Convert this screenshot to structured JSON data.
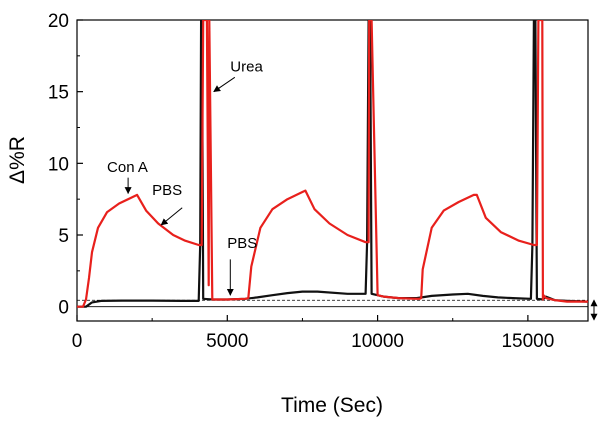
{
  "chart_data": {
    "type": "line",
    "xlabel": "Time (Sec)",
    "ylabel": "Δ%R",
    "xlim": [
      0,
      17000
    ],
    "ylim": [
      -1,
      20
    ],
    "xticks": [
      0,
      5000,
      10000,
      15000
    ],
    "yticks": [
      0,
      5,
      10,
      15,
      20
    ],
    "xtick_labels": [
      "0",
      "5000",
      "10000",
      "15000"
    ],
    "ytick_labels": [
      "0",
      "5",
      "10",
      "15",
      "20"
    ],
    "baseline_y": 0.45,
    "zero_y": 0,
    "grid": false,
    "series": [
      {
        "color": "#e8201c",
        "x": [
          0,
          200,
          300,
          400,
          500,
          700,
          1000,
          1400,
          2000,
          2300,
          2700,
          3200,
          3600,
          4050,
          4150,
          4200,
          4320,
          4380,
          4400,
          4500,
          5000,
          5600,
          5700,
          5800,
          6100,
          6500,
          7000,
          7500,
          7600,
          7900,
          8400,
          9000,
          9600,
          9700,
          9720,
          9800,
          10000,
          10200,
          10700,
          11300,
          11400,
          11450,
          11500,
          11800,
          12200,
          12700,
          13200,
          13300,
          13600,
          14100,
          14700,
          15200,
          15300,
          15350,
          15480,
          15500,
          15520,
          15600,
          15900,
          16300,
          17000
        ],
        "y": [
          0,
          0,
          0.5,
          2,
          3.8,
          5.5,
          6.6,
          7.2,
          7.8,
          6.7,
          5.8,
          5.0,
          4.6,
          4.3,
          4.3,
          20,
          20,
          1.5,
          20,
          0.5,
          0.5,
          0.55,
          0.6,
          2.8,
          5.5,
          6.8,
          7.5,
          8.0,
          8.1,
          6.8,
          5.8,
          5.0,
          4.5,
          4.5,
          20,
          20,
          0.8,
          0.7,
          0.6,
          0.55,
          0.55,
          0.6,
          2.6,
          5.5,
          6.7,
          7.3,
          7.8,
          7.8,
          6.2,
          5.2,
          4.6,
          4.3,
          4.3,
          20,
          20,
          0.5,
          0.8,
          0.6,
          0.45,
          0.35,
          0.35
        ]
      },
      {
        "color": "#111111",
        "x": [
          0,
          300,
          500,
          800,
          1500,
          2500,
          3500,
          4050,
          4100,
          4130,
          4160,
          4200,
          4500,
          5000,
          5600,
          6000,
          6500,
          7000,
          7500,
          8000,
          9000,
          9600,
          9650,
          9700,
          9750,
          9800,
          10000,
          10200,
          10700,
          11300,
          11800,
          12500,
          13000,
          13500,
          14000,
          14500,
          15100,
          15150,
          15200,
          15250,
          15300,
          15500,
          15600,
          15900,
          16300,
          17000
        ],
        "y": [
          0,
          0,
          0.3,
          0.4,
          0.42,
          0.42,
          0.4,
          0.4,
          4.3,
          20,
          20,
          0.55,
          0.5,
          0.5,
          0.55,
          0.65,
          0.8,
          0.95,
          1.05,
          1.05,
          0.9,
          0.9,
          4.5,
          20,
          20,
          0.9,
          0.8,
          0.7,
          0.6,
          0.6,
          0.75,
          0.85,
          0.9,
          0.75,
          0.65,
          0.6,
          0.55,
          4.3,
          20,
          20,
          0.55,
          0.5,
          0.7,
          0.45,
          0.4,
          0.35
        ]
      }
    ],
    "annotations": [
      {
        "text": "Con A",
        "x": 1000,
        "y": 9.4,
        "arrow_to_x": 1700,
        "arrow_to_y": 7.9,
        "arrow_from_x": 1700,
        "arrow_from_y": 9.0
      },
      {
        "text": "PBS",
        "x": 2500,
        "y": 7.8,
        "arrow_to_x": 2800,
        "arrow_to_y": 5.7,
        "arrow_from_x": 3500,
        "arrow_from_y": 6.9
      },
      {
        "text": "Urea",
        "x": 5100,
        "y": 16.4,
        "arrow_to_x": 4550,
        "arrow_to_y": 15.0,
        "arrow_from_x": 5250,
        "arrow_from_y": 16.0
      },
      {
        "text": "PBS",
        "x": 5000,
        "y": 4.1,
        "arrow_to_x": 5100,
        "arrow_to_y": 0.8,
        "arrow_from_x": 5100,
        "arrow_from_y": 3.3
      }
    ]
  }
}
